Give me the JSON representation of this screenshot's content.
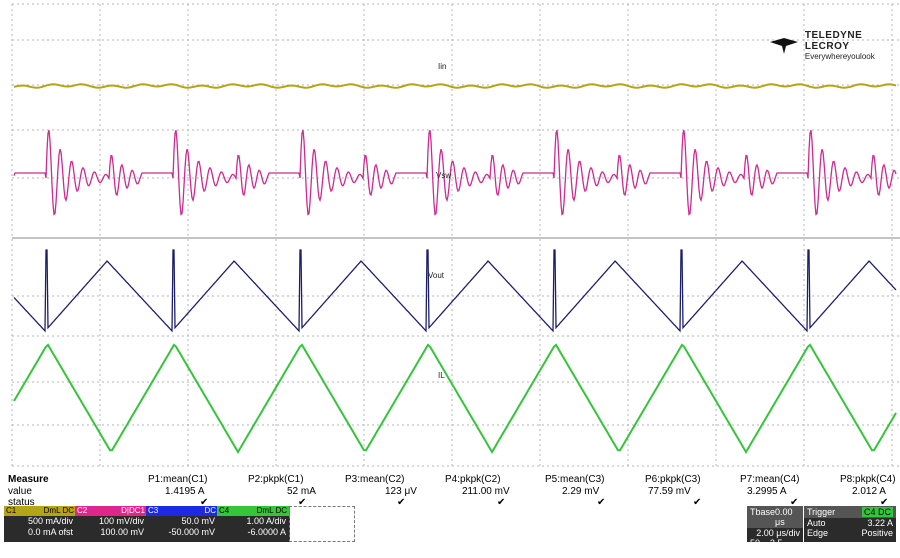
{
  "logo": {
    "brand": "TELEDYNE LECROY",
    "tagline": "Everywhereyoulook"
  },
  "traces": {
    "iin_label": "Iin",
    "vsw_label": "Vsw",
    "vout_label": "Vout",
    "il_label": "IL",
    "colors": {
      "c1": "#b7a416",
      "c2": "#cc2b8f",
      "c3": "#1b1f6b",
      "c4": "#35c43a",
      "grid": "#b5b5b5"
    }
  },
  "measure": {
    "header": "Measure",
    "row_labels": [
      "value",
      "status"
    ],
    "params": [
      {
        "name": "P1:mean(C1)",
        "value": "1.4195 A",
        "status": "✔"
      },
      {
        "name": "P2:pkpk(C1)",
        "value": "52 mA",
        "status": "✔"
      },
      {
        "name": "P3:mean(C2)",
        "value": "123 μV",
        "status": "✔"
      },
      {
        "name": "P4:pkpk(C2)",
        "value": "211.00 mV",
        "status": "✔"
      },
      {
        "name": "P5:mean(C3)",
        "value": "2.29 mV",
        "status": "✔"
      },
      {
        "name": "P6:pkpk(C3)",
        "value": "77.59 mV",
        "status": "✔"
      },
      {
        "name": "P7:mean(C4)",
        "value": "3.2995 A",
        "status": "✔"
      },
      {
        "name": "P8:pkpk(C4)",
        "value": "2.012 A",
        "status": "✔"
      }
    ]
  },
  "channels": [
    {
      "id": "C1",
      "tag": "DmL DC",
      "vdiv": "500 mA/div",
      "offset": "0.0 mA ofst"
    },
    {
      "id": "C2",
      "tag": "D|DC1",
      "vdiv": "100 mV/div",
      "offset": "100.00 mV"
    },
    {
      "id": "C3",
      "tag": "DC",
      "vdiv": "50.0 mV",
      "offset": "-50.000 mV"
    },
    {
      "id": "C4",
      "tag": "DmL DC",
      "vdiv": "1.00 A/div",
      "offset": "-6.0000 A"
    }
  ],
  "timebase": {
    "label": "Tbase",
    "delay": "0.00 μs",
    "tdiv": "2.00 μs/div",
    "samples": "50 kS",
    "rate": "2.5 GS/s"
  },
  "trigger": {
    "label": "Trigger",
    "tag": "C4 DC",
    "mode": "Auto",
    "level": "3.22 A",
    "type": "Edge",
    "slope": "Positive"
  }
}
